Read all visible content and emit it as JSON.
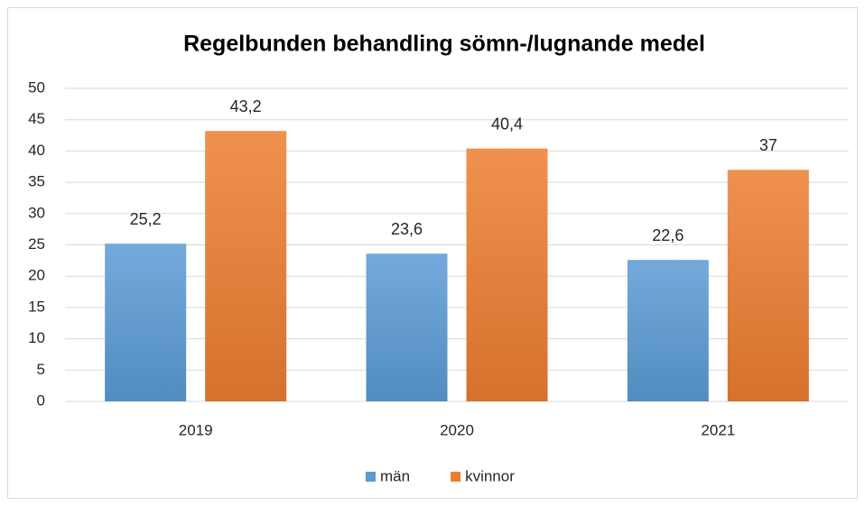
{
  "chart_data": {
    "type": "bar",
    "title": "Regelbunden behandling sömn-/lugnande medel",
    "categories": [
      "2019",
      "2020",
      "2021"
    ],
    "series": [
      {
        "name": "män",
        "color": "#5b9bd5",
        "values": [
          25.2,
          23.6,
          22.6
        ],
        "value_labels": [
          "25,2",
          "23,6",
          "22,6"
        ]
      },
      {
        "name": "kvinnor",
        "color": "#ed7d31",
        "values": [
          43.2,
          40.4,
          37
        ],
        "value_labels": [
          "43,2",
          "40,4",
          "37"
        ]
      }
    ],
    "ylim": [
      0,
      50
    ],
    "yticks": [
      0,
      5,
      10,
      15,
      20,
      25,
      30,
      35,
      40,
      45,
      50
    ],
    "grid": true,
    "legend": "bottom"
  }
}
